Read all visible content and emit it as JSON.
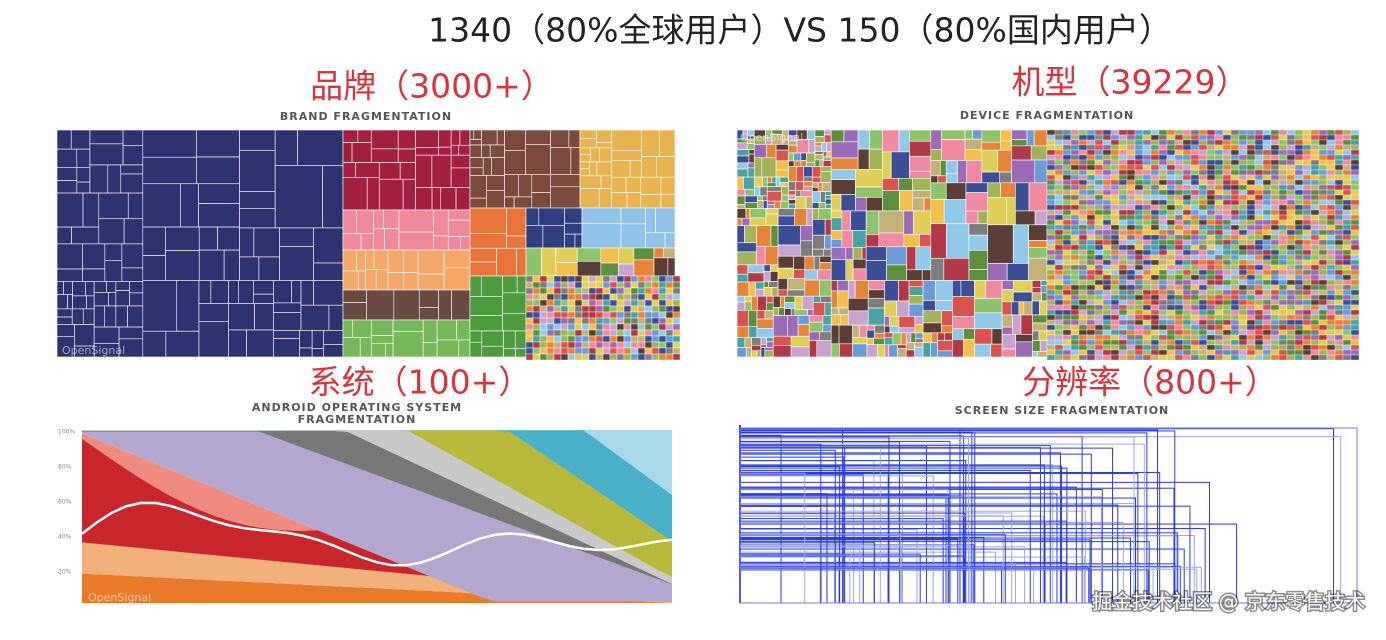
{
  "title": "1340（80%全球用户）VS 150（80%国内用户）",
  "panels": [
    {
      "heading": "品牌（3000+）",
      "caption": [
        "BRAND FRAGMENTATION"
      ],
      "watermark": "OpenSignal"
    },
    {
      "heading": "机型（39229）",
      "caption": [
        "DEVICE FRAGMENTATION"
      ],
      "watermark": "OpenSignal"
    },
    {
      "heading": "系统（100+）",
      "caption": [
        "ANDROID OPERATING SYSTEM",
        "FRAGMENTATION"
      ],
      "watermark": "OpenSignal",
      "axis_labels": [
        "100%",
        "80%",
        "60%",
        "40%",
        "20%"
      ]
    },
    {
      "heading": "分辨率（800+）",
      "caption": [
        "SCREEN SIZE FRAGMENTATION"
      ]
    }
  ],
  "footer": "掘金技术社区 @ 京东零售技术"
}
